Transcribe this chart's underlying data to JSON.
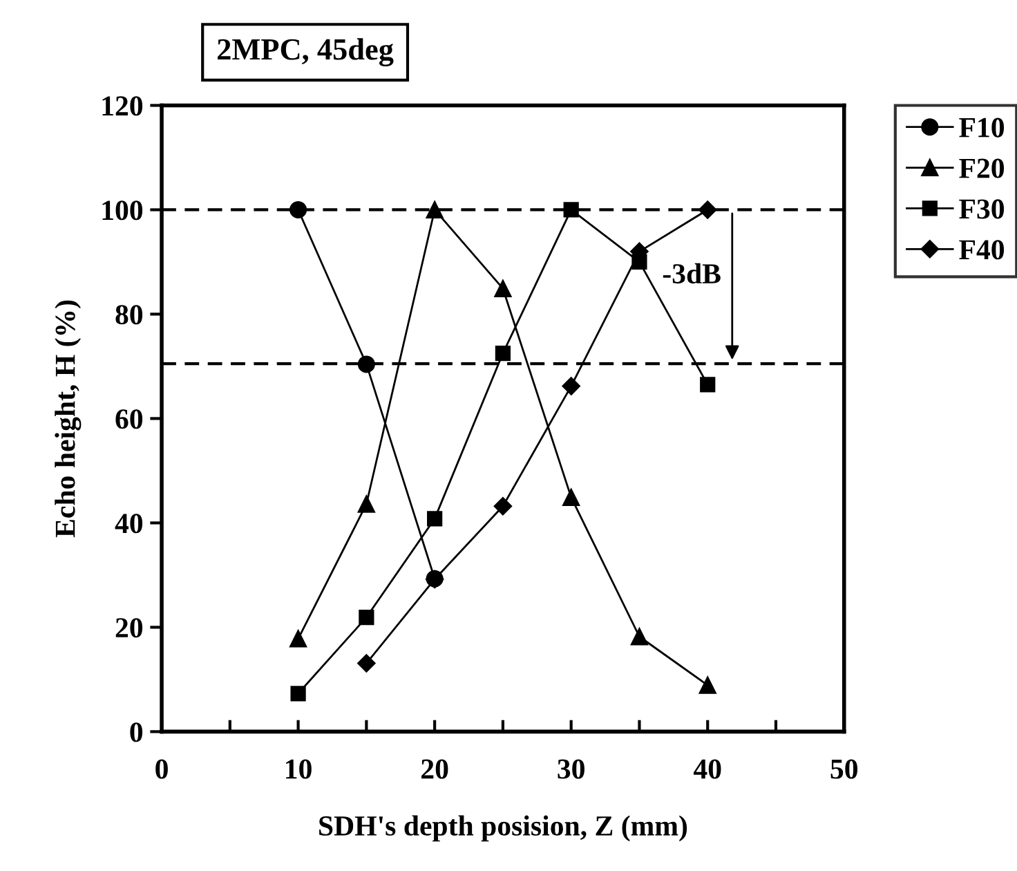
{
  "chart_data": {
    "type": "line",
    "title": "2MPC, 45deg",
    "xlabel": "SDH's depth posision, Z (mm)",
    "ylabel": "Echo height, H (%)",
    "x": [
      10,
      15,
      20,
      25,
      30,
      35,
      40
    ],
    "series": [
      {
        "name": "F10",
        "color": "#000000",
        "marker": "circle",
        "values": [
          100,
          70.4,
          29.3,
          null,
          null,
          null,
          null
        ]
      },
      {
        "name": "F20",
        "color": "#000000",
        "marker": "triangle",
        "values": [
          17.8,
          43.6,
          100,
          84.9,
          44.9,
          18.2,
          8.9
        ]
      },
      {
        "name": "F30",
        "color": "#000000",
        "marker": "square",
        "values": [
          7.3,
          21.9,
          40.8,
          72.5,
          100,
          90,
          66.5
        ]
      },
      {
        "name": "F40",
        "color": "#000000",
        "marker": "diamond",
        "values": [
          null,
          13.1,
          29.2,
          43.2,
          66.2,
          92,
          100
        ]
      }
    ],
    "xlim": [
      0,
      50
    ],
    "xticks": [
      0,
      {
        "value": 5,
        "label": null
      },
      10,
      {
        "value": 15,
        "label": null
      },
      20,
      {
        "value": 25,
        "label": null
      },
      30,
      {
        "value": 35,
        "label": null
      },
      40,
      {
        "value": 45,
        "label": null
      },
      50
    ],
    "ylim": [
      0,
      120
    ],
    "yticks": [
      0,
      20,
      40,
      60,
      80,
      100,
      120
    ],
    "ref_lines": [
      {
        "axis": "y",
        "value": 100,
        "color": "#000000",
        "line_style": "dashed"
      },
      {
        "axis": "y",
        "value": 70.5,
        "color": "#000000",
        "line_style": "dashed"
      }
    ],
    "annotations": [
      "-3dB"
    ],
    "grid": false,
    "legend": "right",
    "line_style": "solid"
  }
}
